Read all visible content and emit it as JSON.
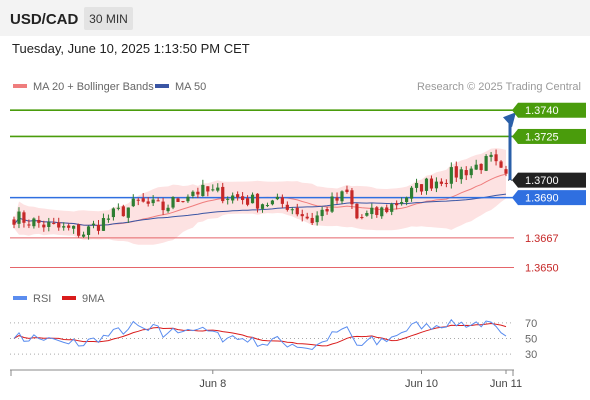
{
  "header": {
    "symbol": "USD/CAD",
    "timeframe": "30 MIN",
    "datetime": "Tuesday, June 10, 2025 1:13:50 PM CET"
  },
  "legend": {
    "ma20": "MA 20 + Bollinger Bands",
    "ma50": "MA 50",
    "rsi": "RSI",
    "rsi_ma": "9MA"
  },
  "credit": "Research © 2025 Trading Central",
  "colors": {
    "up": "#2e7d32",
    "down": "#c62828",
    "ma20": "#ef7d7d",
    "bands_fill": "#fde2e2",
    "ma50": "#3a55a4",
    "resistance": "#4a9c0c",
    "pivot": "#2f6fe0",
    "support": "#e5656a",
    "rsi": "#5b8def",
    "rsi_ma": "#d91c1c",
    "last_price": "#222222",
    "forecast_arrow": "#2a5fa8"
  },
  "chart_data": {
    "type": "candlestick",
    "levels": {
      "resistance": [
        1.374,
        1.3725
      ],
      "pivot": 1.369,
      "support": [
        1.3667,
        1.365
      ],
      "last": 1.37
    },
    "price_labels": [
      "1.3740",
      "1.3725",
      "1.3700",
      "1.3690",
      "1.3667",
      "1.3650"
    ],
    "price_axis_range": [
      1.364,
      1.3747
    ],
    "x_labels": [
      "Jun 8",
      "Jun 10",
      "Jun 11"
    ],
    "x_label_positions": [
      40,
      82,
      99
    ],
    "rsi": {
      "ticks": [
        "70",
        "50",
        "30"
      ],
      "range": [
        20,
        80
      ]
    },
    "series_seed": 7,
    "bars": 100
  }
}
